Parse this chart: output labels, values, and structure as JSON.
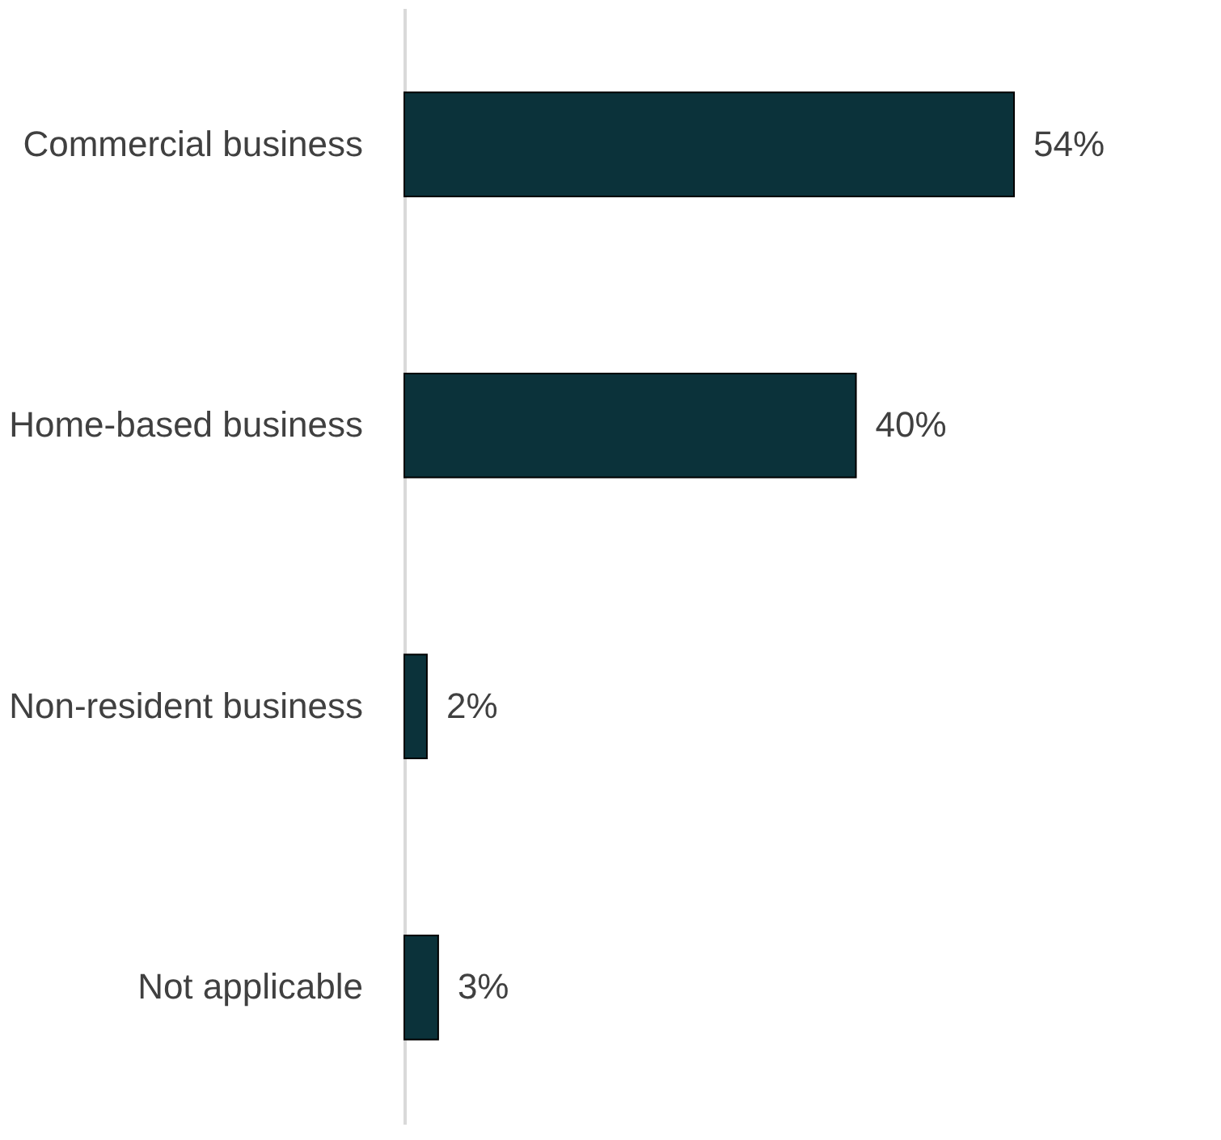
{
  "chart_data": {
    "type": "bar",
    "orientation": "horizontal",
    "categories": [
      "Commercial business",
      "Home-based business",
      "Non-resident business",
      "Not applicable"
    ],
    "values": [
      54,
      40,
      2,
      3
    ],
    "color": "#0b323a",
    "data_labels": true,
    "value_labels": [
      "54%",
      "40%",
      "2%",
      "3%"
    ]
  }
}
